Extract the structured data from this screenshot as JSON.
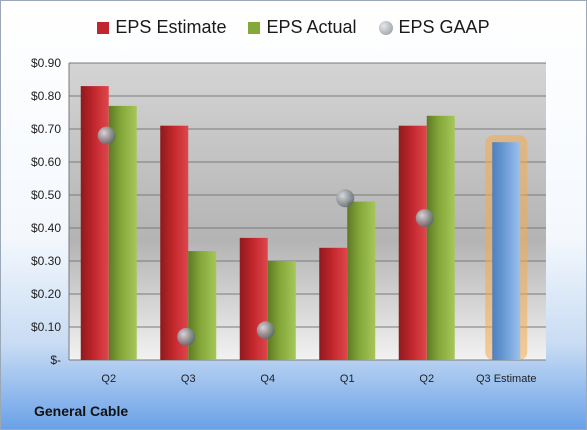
{
  "company": "General Cable",
  "legend": {
    "estimate_label": "EPS Estimate",
    "actual_label": "EPS Actual",
    "gaap_label": "EPS GAAP"
  },
  "colors": {
    "estimate": "#c0262b",
    "actual": "#85a83a",
    "gaap": "#9aa1a8",
    "forecast": "#6f9fd8",
    "forecast_glow": "#f5a94a"
  },
  "chart_data": {
    "type": "bar",
    "categories": [
      "Q2",
      "Q3",
      "Q4",
      "Q1",
      "Q2",
      "Q3 Estimate"
    ],
    "series": [
      {
        "name": "EPS Estimate",
        "values": [
          0.83,
          0.71,
          0.37,
          0.34,
          0.71,
          null
        ]
      },
      {
        "name": "EPS Actual",
        "values": [
          0.77,
          0.33,
          0.3,
          0.48,
          0.74,
          null
        ]
      },
      {
        "name": "EPS GAAP",
        "values": [
          0.68,
          0.07,
          0.09,
          0.49,
          0.43,
          null
        ]
      },
      {
        "name": "Q3 Estimate",
        "values": [
          null,
          null,
          null,
          null,
          null,
          0.66
        ]
      }
    ],
    "ylim": [
      0,
      0.9
    ],
    "yticks": [
      0,
      0.1,
      0.2,
      0.3,
      0.4,
      0.5,
      0.6,
      0.7,
      0.8,
      0.9
    ],
    "ytick_labels": [
      "$-",
      "$0.10",
      "$0.20",
      "$0.30",
      "$0.40",
      "$0.50",
      "$0.60",
      "$0.70",
      "$0.80",
      "$0.90"
    ],
    "grid": true,
    "legend_position": "top"
  }
}
